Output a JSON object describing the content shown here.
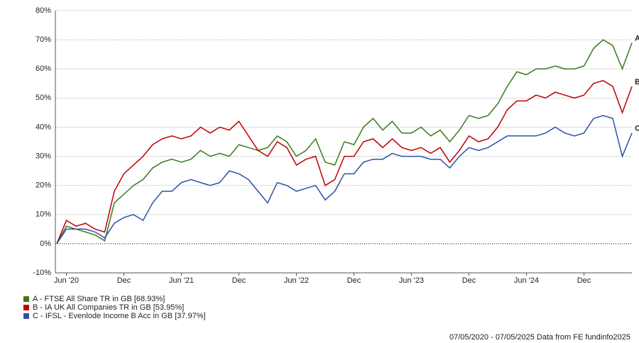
{
  "chart_data": {
    "type": "line",
    "x": [
      "2020-05",
      "2020-06",
      "2020-07",
      "2020-08",
      "2020-09",
      "2020-10",
      "2020-11",
      "2020-12",
      "2021-01",
      "2021-02",
      "2021-03",
      "2021-04",
      "2021-05",
      "2021-06",
      "2021-07",
      "2021-08",
      "2021-09",
      "2021-10",
      "2021-11",
      "2021-12",
      "2022-01",
      "2022-02",
      "2022-03",
      "2022-04",
      "2022-05",
      "2022-06",
      "2022-07",
      "2022-08",
      "2022-09",
      "2022-10",
      "2022-11",
      "2022-12",
      "2023-01",
      "2023-02",
      "2023-03",
      "2023-04",
      "2023-05",
      "2023-06",
      "2023-07",
      "2023-08",
      "2023-09",
      "2023-10",
      "2023-11",
      "2023-12",
      "2024-01",
      "2024-02",
      "2024-03",
      "2024-04",
      "2024-05",
      "2024-06",
      "2024-07",
      "2024-08",
      "2024-09",
      "2024-10",
      "2024-11",
      "2024-12",
      "2025-01",
      "2025-02",
      "2025-03",
      "2025-04",
      "2025-05"
    ],
    "series": [
      {
        "name": "A - FTSE All Share TR in GB [68.93%]",
        "tag": "A",
        "color": "#3a7a1c",
        "values": [
          0,
          6,
          5,
          4,
          3,
          1,
          14,
          17,
          20,
          22,
          26,
          28,
          29,
          28,
          29,
          32,
          30,
          31,
          30,
          34,
          33,
          32,
          33,
          37,
          35,
          30,
          32,
          36,
          28,
          27,
          35,
          34,
          40,
          43,
          39,
          42,
          38,
          38,
          40,
          37,
          39,
          35,
          39,
          44,
          43,
          44,
          48,
          54,
          59,
          58,
          60,
          60,
          61,
          60,
          60,
          61,
          67,
          70,
          68,
          60,
          68.93
        ]
      },
      {
        "name": "B - IA UK All Companies TR in GB [53.95%]",
        "tag": "B",
        "color": "#c00000",
        "values": [
          0,
          8,
          6,
          7,
          5,
          4,
          18,
          24,
          27,
          30,
          34,
          36,
          37,
          36,
          37,
          40,
          38,
          40,
          39,
          42,
          37,
          32,
          30,
          35,
          33,
          27,
          29,
          30,
          20,
          22,
          30,
          30,
          35,
          36,
          33,
          36,
          33,
          32,
          33,
          31,
          33,
          28,
          32,
          37,
          35,
          36,
          40,
          46,
          49,
          49,
          51,
          50,
          52,
          51,
          50,
          51,
          55,
          56,
          54,
          45,
          53.95
        ]
      },
      {
        "name": "C - IFSL - Evenlode Income B Acc in GB [37.97%]",
        "tag": "C",
        "color": "#2a52a8",
        "values": [
          0,
          5,
          5,
          5,
          4,
          2,
          7,
          9,
          10,
          8,
          14,
          18,
          18,
          21,
          22,
          21,
          20,
          21,
          25,
          24,
          22,
          18,
          14,
          21,
          20,
          18,
          19,
          20,
          15,
          18,
          24,
          24,
          28,
          29,
          29,
          31,
          30,
          30,
          30,
          29,
          29,
          26,
          30,
          33,
          32,
          33,
          35,
          37,
          37,
          37,
          37,
          38,
          40,
          38,
          37,
          38,
          43,
          44,
          43,
          30,
          37.97
        ]
      }
    ],
    "ylim": [
      -10,
      80
    ],
    "yticks": [
      {
        "value": -10,
        "label": "-10%"
      },
      {
        "value": 0,
        "label": "0%"
      },
      {
        "value": 10,
        "label": "10%"
      },
      {
        "value": 20,
        "label": "20%"
      },
      {
        "value": 30,
        "label": "30%"
      },
      {
        "value": 40,
        "label": "40%"
      },
      {
        "value": 50,
        "label": "50%"
      },
      {
        "value": 60,
        "label": "60%"
      },
      {
        "value": 70,
        "label": "70%"
      },
      {
        "value": 80,
        "label": "80%"
      }
    ],
    "xticks": [
      {
        "value": "2020-06",
        "label": "Jun '20"
      },
      {
        "value": "2020-12",
        "label": "Dec"
      },
      {
        "value": "2021-06",
        "label": "Jun '21"
      },
      {
        "value": "2021-12",
        "label": "Dec"
      },
      {
        "value": "2022-06",
        "label": "Jun '22"
      },
      {
        "value": "2022-12",
        "label": "Dec"
      },
      {
        "value": "2023-06",
        "label": "Jun '23"
      },
      {
        "value": "2023-12",
        "label": "Dec"
      },
      {
        "value": "2024-06",
        "label": "Jun '24"
      },
      {
        "value": "2024-12",
        "label": "Dec"
      }
    ],
    "grid": true,
    "footer": "07/05/2020 - 07/05/2025 Data from FE fundinfo2025"
  }
}
